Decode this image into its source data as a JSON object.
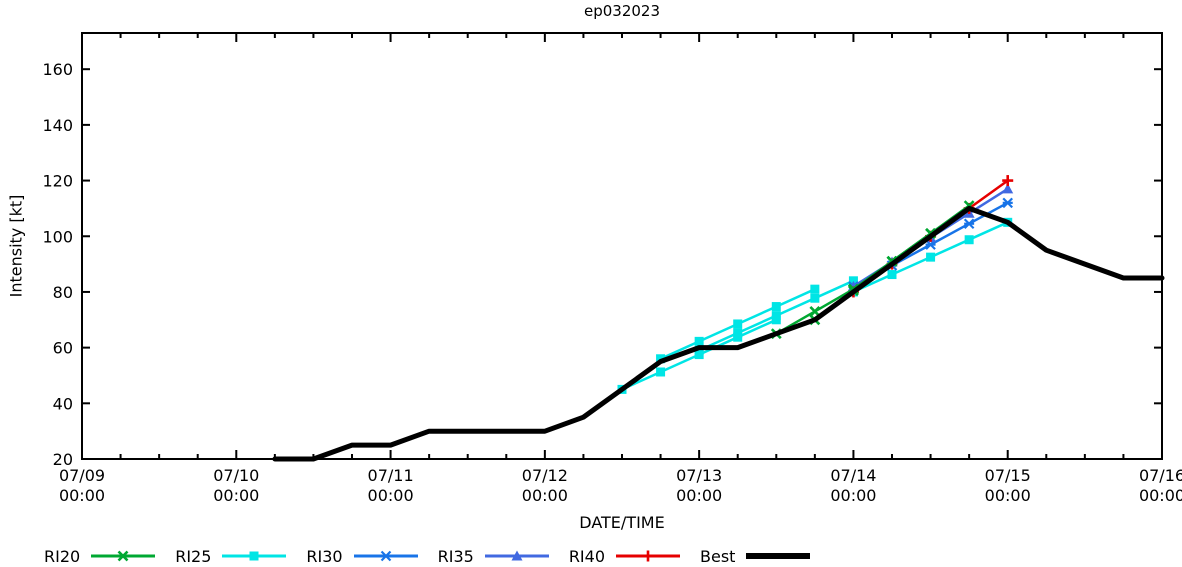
{
  "title": "ep032023",
  "axes": {
    "x_label": "DATE/TIME",
    "y_label": "Intensity [kt]",
    "x_ticks": [
      {
        "date": "07/09",
        "time": "00:00"
      },
      {
        "date": "07/10",
        "time": "00:00"
      },
      {
        "date": "07/11",
        "time": "00:00"
      },
      {
        "date": "07/12",
        "time": "00:00"
      },
      {
        "date": "07/13",
        "time": "00:00"
      },
      {
        "date": "07/14",
        "time": "00:00"
      },
      {
        "date": "07/15",
        "time": "00:00"
      },
      {
        "date": "07/16",
        "time": "00:00"
      }
    ],
    "x_minor_ticks_per_day": 4,
    "y_ticks": [
      20,
      40,
      60,
      80,
      100,
      120,
      140,
      160
    ]
  },
  "chart_data": {
    "type": "line",
    "title": "ep032023",
    "xlabel": "DATE/TIME",
    "ylabel": "Intensity [kt]",
    "x_unit": "days since 07/09 00:00 (0.25 = 6 h)",
    "x_range_days": [
      0,
      7
    ],
    "ylim": [
      20,
      173
    ],
    "grid": false,
    "legend_position": "below-plot",
    "series": [
      {
        "name": "RI25",
        "color": "#00e5e5",
        "marker": "square",
        "line_width": 2.5,
        "segments": [
          [
            [
              3.5,
              45
            ],
            [
              3.75,
              51.25
            ],
            [
              4.0,
              57.5
            ],
            [
              4.25,
              63.75
            ],
            [
              4.5,
              70
            ]
          ],
          [
            [
              3.75,
              56
            ],
            [
              4.0,
              62.25
            ],
            [
              4.25,
              68.5
            ],
            [
              4.5,
              74.75
            ],
            [
              4.75,
              81
            ]
          ],
          [
            [
              4.0,
              59
            ],
            [
              4.25,
              65.25
            ],
            [
              4.5,
              71.5
            ],
            [
              4.75,
              77.75
            ],
            [
              5.0,
              84
            ]
          ],
          [
            [
              5.0,
              80
            ],
            [
              5.25,
              86.25
            ],
            [
              5.5,
              92.5
            ],
            [
              5.75,
              98.75
            ],
            [
              6.0,
              105
            ]
          ]
        ]
      },
      {
        "name": "RI30",
        "color": "#1874e8",
        "marker": "asterisk",
        "line_width": 2.5,
        "segments": [
          [
            [
              5.0,
              82
            ],
            [
              5.25,
              89.5
            ],
            [
              5.5,
              97
            ],
            [
              5.75,
              104.5
            ],
            [
              6.0,
              112
            ]
          ]
        ]
      },
      {
        "name": "RI35",
        "color": "#4169e1",
        "marker": "triangle",
        "line_width": 2.5,
        "segments": [
          [
            [
              5.0,
              82
            ],
            [
              5.25,
              90.75
            ],
            [
              5.5,
              99.5
            ],
            [
              5.75,
              108.25
            ],
            [
              6.0,
              117
            ]
          ]
        ]
      },
      {
        "name": "RI40",
        "color": "#e60000",
        "marker": "plus",
        "line_width": 2.5,
        "segments": [
          [
            [
              5.0,
              80
            ],
            [
              5.25,
              90
            ],
            [
              5.5,
              100
            ],
            [
              5.75,
              110
            ],
            [
              6.0,
              120
            ]
          ]
        ]
      },
      {
        "name": "RI20",
        "color": "#00a832",
        "marker": "x",
        "line_width": 2.5,
        "segments": [
          [
            [
              4.5,
              65
            ],
            [
              4.75,
              73
            ],
            [
              5.0,
              81
            ]
          ],
          [
            [
              4.75,
              70
            ],
            [
              5.0,
              80.5
            ],
            [
              5.25,
              91
            ]
          ],
          [
            [
              5.0,
              81
            ],
            [
              5.25,
              91
            ],
            [
              5.5,
              101
            ]
          ],
          [
            [
              5.25,
              91
            ],
            [
              5.5,
              101
            ],
            [
              5.75,
              111
            ]
          ]
        ]
      },
      {
        "name": "Best",
        "color": "#000000",
        "marker": "none",
        "line_width": 5,
        "segments": [
          [
            [
              1.25,
              20
            ],
            [
              1.5,
              20
            ],
            [
              1.75,
              25
            ],
            [
              2.0,
              25
            ],
            [
              2.25,
              30
            ],
            [
              2.5,
              30
            ],
            [
              2.75,
              30
            ],
            [
              3.0,
              30
            ],
            [
              3.25,
              35
            ],
            [
              3.5,
              45
            ],
            [
              3.75,
              55
            ],
            [
              4.0,
              60
            ],
            [
              4.25,
              60
            ],
            [
              4.5,
              65
            ],
            [
              4.75,
              70
            ],
            [
              5.0,
              80
            ],
            [
              5.25,
              90
            ],
            [
              5.5,
              100
            ],
            [
              5.75,
              110
            ],
            [
              6.0,
              105
            ],
            [
              6.25,
              95
            ],
            [
              6.5,
              90
            ],
            [
              6.75,
              85
            ],
            [
              7.0,
              85
            ]
          ]
        ]
      }
    ]
  },
  "legend": [
    {
      "label": "RI20",
      "color": "#00a832",
      "marker": "x",
      "line_width": 3
    },
    {
      "label": "RI25",
      "color": "#00e5e5",
      "marker": "square",
      "line_width": 3
    },
    {
      "label": "RI30",
      "color": "#1874e8",
      "marker": "asterisk",
      "line_width": 3
    },
    {
      "label": "RI35",
      "color": "#4169e1",
      "marker": "triangle",
      "line_width": 3
    },
    {
      "label": "RI40",
      "color": "#e60000",
      "marker": "plus",
      "line_width": 3
    },
    {
      "label": "Best",
      "color": "#000000",
      "marker": "none",
      "line_width": 6
    }
  ]
}
